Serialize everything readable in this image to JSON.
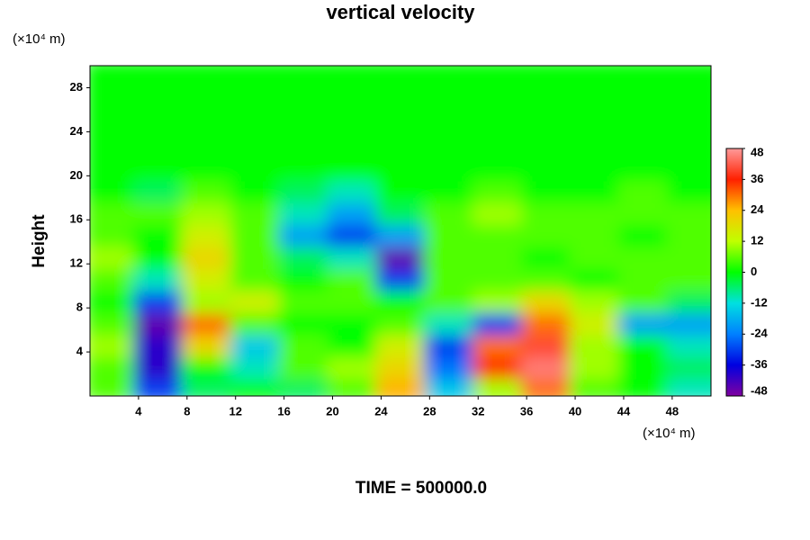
{
  "chart_data": {
    "type": "contour",
    "title": "vertical velocity",
    "ylabel": "Height",
    "xunit": "(×10⁴ m)",
    "yunit": "(×10⁴ m)",
    "footer": "TIME = 500000.0",
    "xlim": [
      0,
      51.2
    ],
    "ylim": [
      0,
      30
    ],
    "xticks": [
      4,
      8,
      12,
      16,
      20,
      24,
      28,
      32,
      36,
      40,
      44,
      48
    ],
    "yticks": [
      4,
      8,
      12,
      16,
      20,
      24,
      28
    ],
    "x": [
      2,
      6,
      10,
      14,
      18,
      22,
      26,
      30,
      34,
      38,
      42,
      46,
      50
    ],
    "y": [
      1,
      3,
      5,
      7,
      9,
      11,
      13,
      15,
      17,
      19,
      21,
      23,
      25,
      27,
      29
    ],
    "z": [
      [
        5,
        -30,
        -5,
        0,
        -5,
        5,
        25,
        -15,
        10,
        30,
        5,
        0,
        -10
      ],
      [
        5,
        -40,
        0,
        -10,
        5,
        10,
        20,
        -25,
        35,
        45,
        10,
        0,
        -5
      ],
      [
        10,
        -40,
        20,
        -15,
        5,
        0,
        15,
        -30,
        30,
        40,
        10,
        0,
        -10
      ],
      [
        5,
        -45,
        30,
        5,
        0,
        0,
        5,
        -10,
        -30,
        30,
        15,
        -20,
        -20
      ],
      [
        0,
        -30,
        10,
        15,
        5,
        5,
        0,
        5,
        10,
        20,
        10,
        5,
        -5
      ],
      [
        5,
        -10,
        15,
        5,
        0,
        5,
        -30,
        5,
        5,
        5,
        0,
        5,
        5
      ],
      [
        10,
        0,
        20,
        5,
        -5,
        -10,
        -45,
        5,
        5,
        0,
        5,
        5,
        5
      ],
      [
        5,
        0,
        15,
        5,
        -20,
        -30,
        -20,
        5,
        5,
        5,
        5,
        0,
        5
      ],
      [
        5,
        5,
        10,
        5,
        -10,
        -20,
        -5,
        5,
        10,
        5,
        5,
        5,
        5
      ],
      [
        0,
        -5,
        5,
        0,
        -5,
        -10,
        0,
        0,
        5,
        0,
        0,
        5,
        0
      ],
      [
        0,
        0,
        0,
        0,
        0,
        0,
        0,
        0,
        0,
        0,
        0,
        0,
        0
      ],
      [
        0,
        0,
        0,
        0,
        0,
        0,
        0,
        0,
        0,
        0,
        0,
        0,
        0
      ],
      [
        0,
        0,
        0,
        0,
        0,
        0,
        0,
        0,
        0,
        0,
        0,
        0,
        0
      ],
      [
        0,
        0,
        0,
        0,
        0,
        0,
        0,
        0,
        0,
        0,
        0,
        0,
        0
      ],
      [
        0,
        0,
        0,
        0,
        0,
        0,
        0,
        0,
        0,
        0,
        0,
        0,
        0
      ]
    ],
    "colorbar": {
      "lim": [
        -48,
        48
      ],
      "ticks": [
        -48,
        -36,
        -24,
        -12,
        0,
        12,
        24,
        36,
        48
      ],
      "colors": [
        "#8000a0",
        "#0000e0",
        "#0080ff",
        "#00e0e0",
        "#00ff00",
        "#c0ff00",
        "#ffc000",
        "#ff2000",
        "#ff9a9a"
      ]
    }
  }
}
